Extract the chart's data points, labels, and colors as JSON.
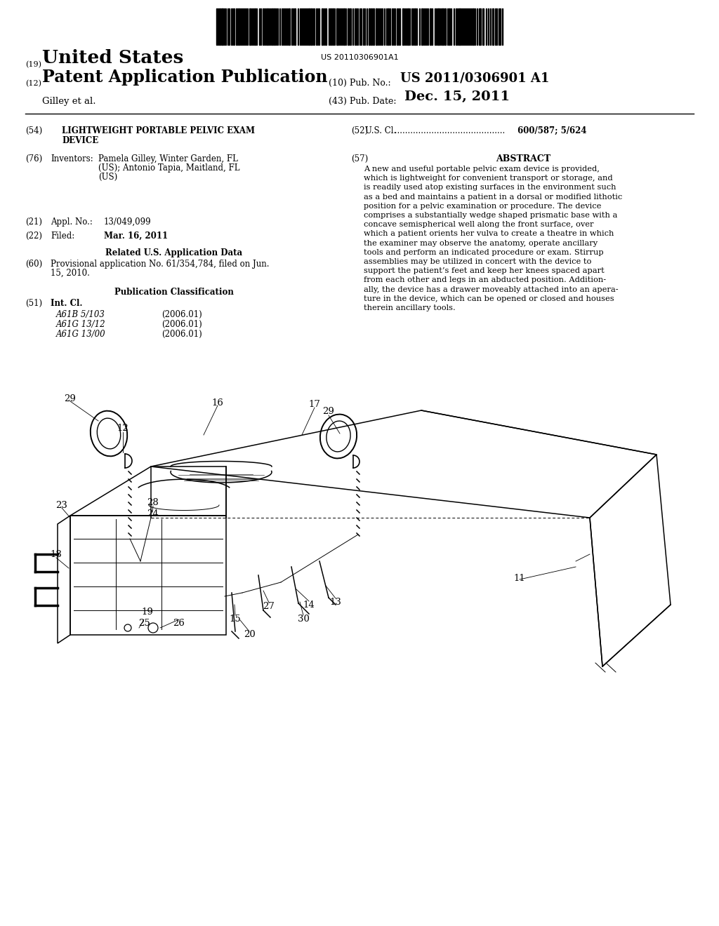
{
  "bg_color": "#ffffff",
  "barcode_text": "US 20110306901A1",
  "title19_super": "(19)",
  "title19_text": "United States",
  "title12_super": "(12)",
  "title12_text": "Patent Application Publication",
  "pub_no_label": "(10) Pub. No.:",
  "pub_no_value": "US 2011/0306901 A1",
  "pub_date_label": "(43) Pub. Date:",
  "pub_date_value": "Dec. 15, 2011",
  "inventor_line": "Gilley et al.",
  "field54_label": "(54)",
  "field54_text": "LIGHTWEIGHT PORTABLE PELVIC EXAM\nDEVICE",
  "field52_label": "(52)",
  "field52_text_1": "U.S. Cl.",
  "field52_dots": " ..........................................",
  "field52_value": " 600/587; 5/624",
  "field76_label": "(76)",
  "field76_name": "Inventors:",
  "field76_text_line1": "Pamela Gilley, Winter Garden, FL",
  "field76_text_line2": "(US); Antonio Tapia, Maitland, FL",
  "field76_text_line3": "(US)",
  "field57_label": "(57)",
  "field57_title": "ABSTRACT",
  "abstract_text": "A new and useful portable pelvic exam device is provided,\nwhich is lightweight for convenient transport or storage, and\nis readily used atop existing surfaces in the environment such\nas a bed and maintains a patient in a dorsal or modified lithotic\nposition for a pelvic examination or procedure. The device\ncomprises a substantially wedge shaped prismatic base with a\nconcave semispherical well along the front surface, over\nwhich a patient orients her vulva to create a theatre in which\nthe examiner may observe the anatomy, operate ancillary\ntools and perform an indicated procedure or exam. Stirrup\nassemblies may be utilized in concert with the device to\nsupport the patient’s feet and keep her knees spaced apart\nfrom each other and legs in an abducted position. Addition-\nally, the device has a drawer moveably attached into an apera-\nture in the device, which can be opened or closed and houses\ntherein ancillary tools.",
  "field21_label": "(21)",
  "field21_name": "Appl. No.:",
  "field21_value": "13/049,099",
  "field22_label": "(22)",
  "field22_name": "Filed:",
  "field22_value": "Mar. 16, 2011",
  "related_title": "Related U.S. Application Data",
  "field60_label": "(60)",
  "field60_text": "Provisional application No. 61/354,784, filed on Jun.\n15, 2010.",
  "pub_class_title": "Publication Classification",
  "field51_label": "(51)",
  "field51_name": "Int. Cl.",
  "field51_entries": [
    [
      "A61B 5/103",
      "(2006.01)"
    ],
    [
      "A61G 13/12",
      "(2006.01)"
    ],
    [
      "A61G 13/00",
      "(2006.01)"
    ]
  ]
}
